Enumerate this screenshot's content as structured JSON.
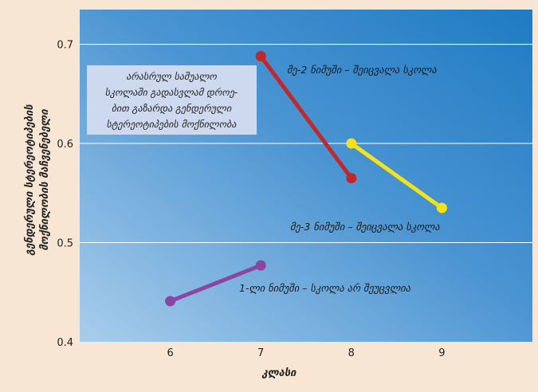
{
  "chart_data": {
    "type": "line",
    "xlabel": "კლასი",
    "ylabel": [
      "გენდერული სტერეოტიპების",
      "მოქნილობის მაჩვენებელი"
    ],
    "x_ticks": [
      6,
      7,
      8,
      9
    ],
    "y_ticks": [
      "0.4",
      "0.5",
      "0.6",
      "0.7"
    ],
    "xlim": [
      5,
      10
    ],
    "ylim": [
      0.4,
      0.735
    ],
    "grid": "horizontal",
    "series": [
      {
        "name": "1-ლი ნიმუში – სკოლა არ შეუცვლია",
        "color": "#8b45a2",
        "x": [
          6,
          7
        ],
        "y": [
          0.441,
          0.477
        ]
      },
      {
        "name": "მე-2 ნიმუში – შეიცვალა სკოლა",
        "color": "#c0282d",
        "x": [
          7,
          8
        ],
        "y": [
          0.688,
          0.565
        ]
      },
      {
        "name": "მე-3 ნიმუში – შეიცვალა სკოლა",
        "color": "#f5e21b",
        "x": [
          8,
          9
        ],
        "y": [
          0.6,
          0.535
        ]
      }
    ],
    "annotation_box": [
      "არასრულ საშუალო",
      "სკოლაში გადასვლამ დროე-",
      "ბით გაზარდა გენდერული",
      "სტერეოტიპების მოქნილობა"
    ]
  },
  "colors": {
    "page_background": "#f6e6d3",
    "plot_gradient_light": "#a9cdeb",
    "plot_gradient_dark": "#1f7bc3",
    "annotation_box_fill": "#ccd9ef"
  }
}
